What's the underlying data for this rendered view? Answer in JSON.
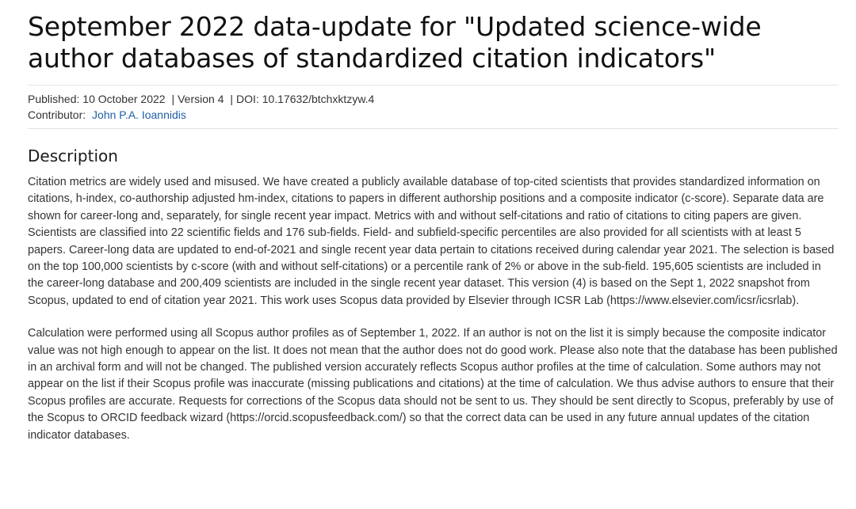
{
  "title": "September 2022 data-update for \"Updated science-wide author databases of standardized citation indicators\"",
  "meta": {
    "published_label": "Published:",
    "published_date": "10 October 2022",
    "separator": "|",
    "version": "Version 4",
    "doi_label": "DOI:",
    "doi": "10.17632/btchxktzyw.4",
    "contributor_label": "Contributor:",
    "contributor_name": "John P.A. Ioannidis"
  },
  "description": {
    "heading": "Description",
    "paragraphs": [
      "Citation metrics are widely used and misused. We have created a publicly available database of top-cited scientists that provides standardized information on citations, h-index, co-authorship adjusted hm-index, citations to papers in different authorship positions and a composite indicator (c-score). Separate data are shown for career-long and, separately, for single recent year impact. Metrics with and without self-citations and ratio of citations to citing papers are given. Scientists are classified into 22 scientific fields and 176 sub-fields. Field- and subfield-specific percentiles are also provided for all scientists with at least 5 papers. Career-long data are updated to end-of-2021 and single recent year data pertain to citations received during calendar year 2021. The selection is based on the top 100,000 scientists by c-score (with and without self-citations) or a percentile rank of 2% or above in the sub-field. 195,605 scientists are included in the career-long database and 200,409 scientists are included in the single recent year dataset. This version (4) is based on the Sept 1, 2022 snapshot from Scopus, updated to end of citation year 2021. This work uses Scopus data provided by Elsevier through ICSR Lab (https://www.elsevier.com/icsr/icsrlab).",
      "Calculation were performed using all Scopus author profiles as of September 1, 2022. If an author is not on the list it is simply because the composite indicator value was not high enough to appear on the list. It does not mean that the author does not do good work.  Please also note that the database has been published in an archival form and will not be changed. The published version accurately reflects Scopus author profiles at the time of calculation.  Some authors may not appear on the list if their Scopus profile was inaccurate (missing publications and citations) at the time of calculation. We thus advise authors to ensure that their Scopus profiles are accurate. Requests for corrections of the Scopus data should not be sent to us. They should be sent directly to Scopus, preferably by use of the Scopus to ORCID feedback wizard (https://orcid.scopusfeedback.com/) so that the correct data can be used in any future annual updates of the citation indicator databases."
    ]
  },
  "colors": {
    "link": "#1f5fa6",
    "text": "#333333",
    "title": "#111111",
    "divider": "#e4e4e4"
  }
}
